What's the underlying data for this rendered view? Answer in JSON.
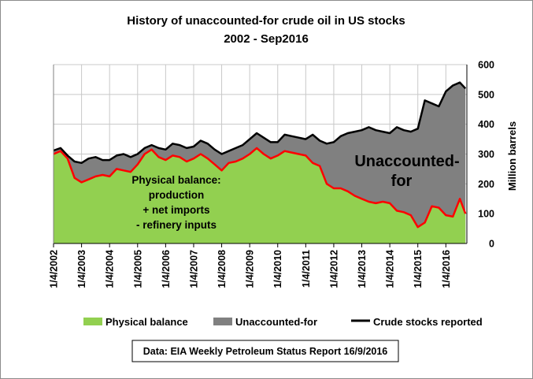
{
  "chart_data": {
    "type": "area",
    "title_line1": "History of unaccounted-for crude oil in US stocks",
    "title_line2": "2002 - Sep2016",
    "ylabel": "Million barrels",
    "ylim": [
      0,
      600
    ],
    "yticks": [
      "0",
      "100",
      "200",
      "300",
      "400",
      "500",
      "600"
    ],
    "xlim": [
      2002.0,
      2016.75
    ],
    "x_tick_labels": [
      "1/4/2002",
      "1/4/2003",
      "1/4/2004",
      "1/4/2005",
      "1/4/2006",
      "1/4/2007",
      "1/4/2008",
      "1/4/2009",
      "1/4/2010",
      "1/4/2011",
      "1/4/2012",
      "1/4/2013",
      "1/4/2014",
      "1/4/2015",
      "1/4/2016"
    ],
    "grid": true,
    "legend_position": "bottom",
    "colors": {
      "physical": "#92d050",
      "unaccounted": "#808080",
      "stocks_line": "#000000",
      "physical_line": "#ff0000",
      "grid": "#c8c8c8"
    },
    "series": [
      {
        "name": "Physical balance",
        "x": [
          2002.0,
          2002.25,
          2002.5,
          2002.75,
          2003.0,
          2003.25,
          2003.5,
          2003.75,
          2004.0,
          2004.25,
          2004.5,
          2004.75,
          2005.0,
          2005.25,
          2005.5,
          2005.75,
          2006.0,
          2006.25,
          2006.5,
          2006.75,
          2007.0,
          2007.25,
          2007.5,
          2007.75,
          2008.0,
          2008.25,
          2008.5,
          2008.75,
          2009.0,
          2009.25,
          2009.5,
          2009.75,
          2010.0,
          2010.25,
          2010.5,
          2010.75,
          2011.0,
          2011.25,
          2011.5,
          2011.75,
          2012.0,
          2012.25,
          2012.5,
          2012.75,
          2013.0,
          2013.25,
          2013.5,
          2013.75,
          2014.0,
          2014.25,
          2014.5,
          2014.75,
          2015.0,
          2015.25,
          2015.5,
          2015.75,
          2016.0,
          2016.25,
          2016.5,
          2016.7
        ],
        "values": [
          300,
          310,
          285,
          220,
          205,
          215,
          225,
          230,
          225,
          250,
          245,
          240,
          265,
          300,
          315,
          290,
          280,
          295,
          290,
          275,
          285,
          300,
          285,
          265,
          245,
          270,
          275,
          285,
          300,
          320,
          300,
          285,
          295,
          310,
          305,
          300,
          295,
          270,
          260,
          200,
          185,
          185,
          175,
          160,
          150,
          140,
          135,
          140,
          135,
          110,
          105,
          95,
          55,
          70,
          125,
          120,
          95,
          90,
          150,
          100
        ]
      },
      {
        "name": "Crude stocks reported",
        "x": [
          2002.0,
          2002.25,
          2002.5,
          2002.75,
          2003.0,
          2003.25,
          2003.5,
          2003.75,
          2004.0,
          2004.25,
          2004.5,
          2004.75,
          2005.0,
          2005.25,
          2005.5,
          2005.75,
          2006.0,
          2006.25,
          2006.5,
          2006.75,
          2007.0,
          2007.25,
          2007.5,
          2007.75,
          2008.0,
          2008.25,
          2008.5,
          2008.75,
          2009.0,
          2009.25,
          2009.5,
          2009.75,
          2010.0,
          2010.25,
          2010.5,
          2010.75,
          2011.0,
          2011.25,
          2011.5,
          2011.75,
          2012.0,
          2012.25,
          2012.5,
          2012.75,
          2013.0,
          2013.25,
          2013.5,
          2013.75,
          2014.0,
          2014.25,
          2014.5,
          2014.75,
          2015.0,
          2015.25,
          2015.5,
          2015.75,
          2016.0,
          2016.25,
          2016.5,
          2016.7
        ],
        "values": [
          312,
          320,
          295,
          275,
          270,
          285,
          290,
          280,
          280,
          295,
          300,
          290,
          300,
          320,
          330,
          320,
          315,
          335,
          330,
          320,
          325,
          345,
          335,
          315,
          300,
          310,
          320,
          330,
          350,
          370,
          355,
          340,
          340,
          365,
          360,
          355,
          350,
          365,
          345,
          335,
          340,
          360,
          370,
          375,
          380,
          390,
          380,
          375,
          370,
          390,
          380,
          375,
          385,
          480,
          470,
          460,
          510,
          530,
          540,
          520
        ]
      }
    ],
    "annotations": {
      "unaccounted_line1": "Unaccounted-",
      "unaccounted_line2": "for",
      "physical_line1": "Physical balance:",
      "physical_line2": "production",
      "physical_line3": "+ net imports",
      "physical_line4": "- refinery inputs"
    },
    "legend": [
      {
        "label": "Physical balance",
        "kind": "swatch",
        "color": "#92d050"
      },
      {
        "label": "Unaccounted-for",
        "kind": "swatch",
        "color": "#808080"
      },
      {
        "label": "Crude stocks reported",
        "kind": "line",
        "color": "#000000"
      }
    ],
    "source": "Data: EIA Weekly Petroleum Status Report 16/9/2016"
  }
}
